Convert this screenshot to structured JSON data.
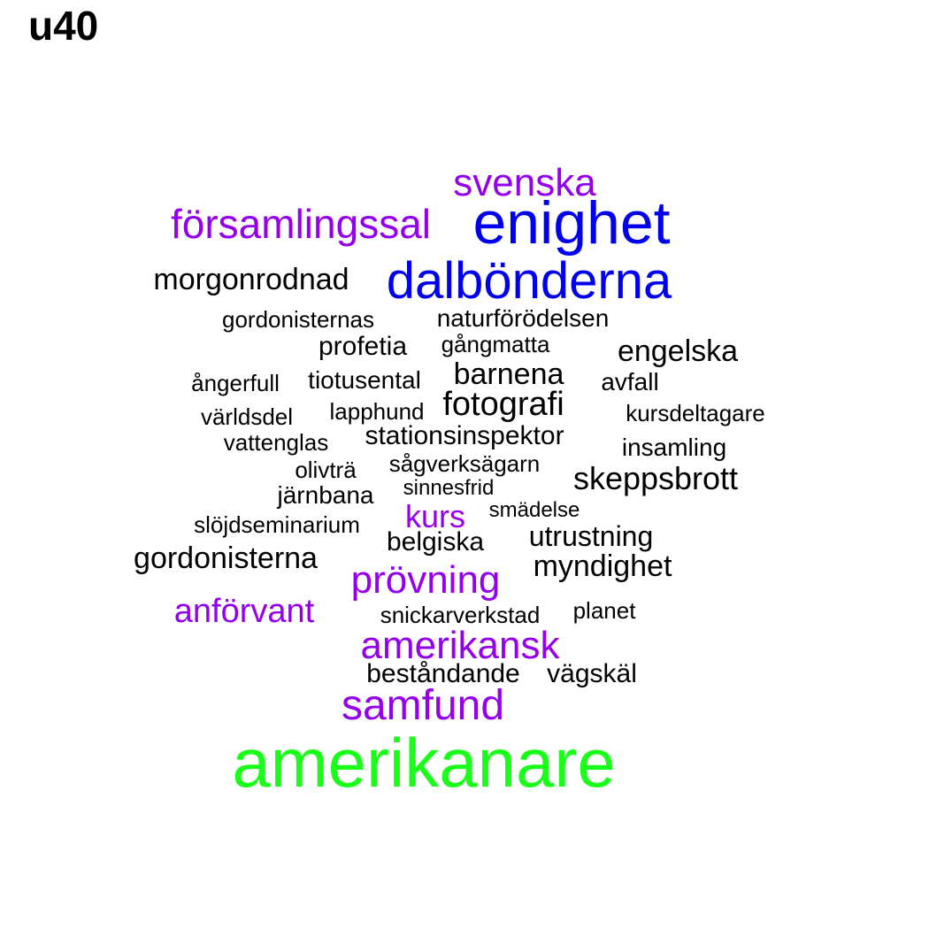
{
  "title": "u40",
  "colors": {
    "black": "#000000",
    "purple": "#9400ee",
    "blue": "#0000ee",
    "green": "#1aff1a"
  },
  "words": [
    {
      "text": "svenska",
      "color": "purple"
    },
    {
      "text": "enighet",
      "color": "blue"
    },
    {
      "text": "församlingssal",
      "color": "purple"
    },
    {
      "text": "morgonrodnad",
      "color": "black"
    },
    {
      "text": "dalbönderna",
      "color": "blue"
    },
    {
      "text": "gordonisternas",
      "color": "black"
    },
    {
      "text": "naturförödelsen",
      "color": "black"
    },
    {
      "text": "profetia",
      "color": "black"
    },
    {
      "text": "gångmatta",
      "color": "black"
    },
    {
      "text": "engelska",
      "color": "black"
    },
    {
      "text": "ångerfull",
      "color": "black"
    },
    {
      "text": "tiotusental",
      "color": "black"
    },
    {
      "text": "barnena",
      "color": "black"
    },
    {
      "text": "avfall",
      "color": "black"
    },
    {
      "text": "världsdel",
      "color": "black"
    },
    {
      "text": "lapphund",
      "color": "black"
    },
    {
      "text": "fotografi",
      "color": "black"
    },
    {
      "text": "kursdeltagare",
      "color": "black"
    },
    {
      "text": "vattenglas",
      "color": "black"
    },
    {
      "text": "stationsinspektor",
      "color": "black"
    },
    {
      "text": "insamling",
      "color": "black"
    },
    {
      "text": "olivträ",
      "color": "black"
    },
    {
      "text": "sågverksägarn",
      "color": "black"
    },
    {
      "text": "skeppsbrott",
      "color": "black"
    },
    {
      "text": "järnbana",
      "color": "black"
    },
    {
      "text": "sinnesfrid",
      "color": "black"
    },
    {
      "text": "slöjdseminarium",
      "color": "black"
    },
    {
      "text": "kurs",
      "color": "purple"
    },
    {
      "text": "smädelse",
      "color": "black"
    },
    {
      "text": "belgiska",
      "color": "black"
    },
    {
      "text": "utrustning",
      "color": "black"
    },
    {
      "text": "gordonisterna",
      "color": "black"
    },
    {
      "text": "prövning",
      "color": "purple"
    },
    {
      "text": "myndighet",
      "color": "black"
    },
    {
      "text": "anförvant",
      "color": "purple"
    },
    {
      "text": "snickarverkstad",
      "color": "black"
    },
    {
      "text": "planet",
      "color": "black"
    },
    {
      "text": "amerikansk",
      "color": "purple"
    },
    {
      "text": "beståndande",
      "color": "black"
    },
    {
      "text": "vägskäl",
      "color": "black"
    },
    {
      "text": "samfund",
      "color": "purple"
    },
    {
      "text": "amerikanare",
      "color": "green"
    }
  ]
}
